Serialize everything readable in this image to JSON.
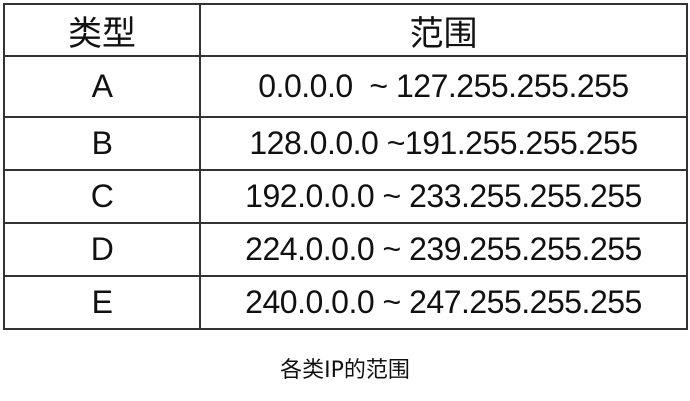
{
  "table": {
    "headers": [
      "类型",
      "范围"
    ],
    "rows": [
      {
        "type": "A",
        "range": "0.0.0.0  ~ 127.255.255.255"
      },
      {
        "type": "B",
        "range": "128.0.0.0 ~191.255.255.255"
      },
      {
        "type": "C",
        "range": "192.0.0.0 ~ 233.255.255.255"
      },
      {
        "type": "D",
        "range": "224.0.0.0 ~ 239.255.255.255"
      },
      {
        "type": "E",
        "range": "240.0.0.0 ~ 247.255.255.255"
      }
    ]
  },
  "caption": "各类IP的范围"
}
